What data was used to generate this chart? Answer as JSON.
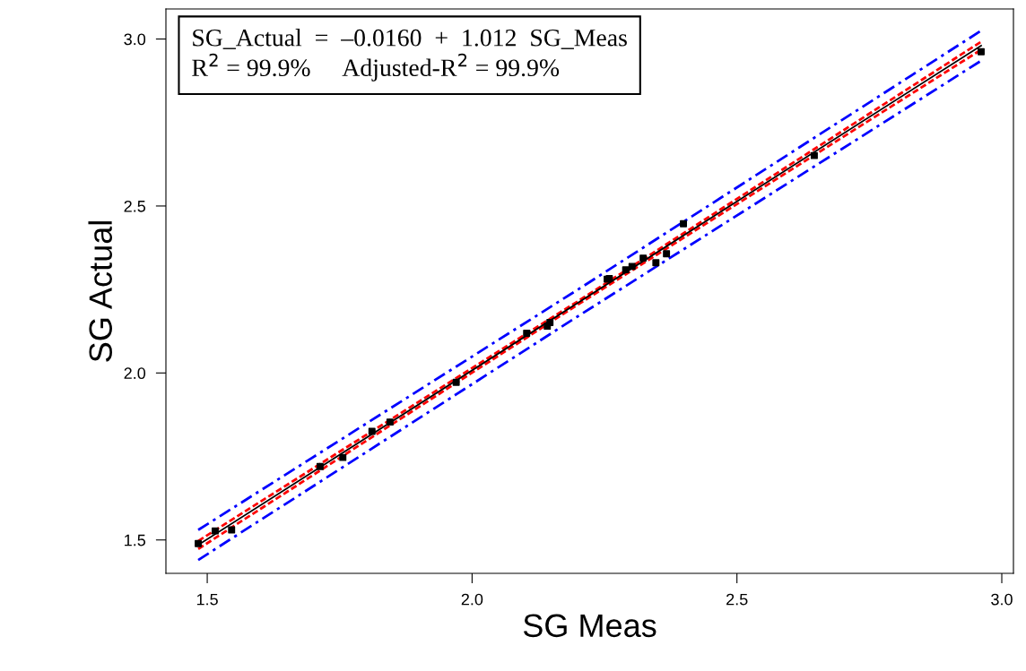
{
  "chart_data": {
    "type": "scatter",
    "xlabel": "SG Meas",
    "ylabel": "SG Actual",
    "xlim": [
      1.422,
      3.022
    ],
    "ylim": [
      1.4,
      3.09
    ],
    "xticks": [
      {
        "value": 1.5,
        "label": "1.5"
      },
      {
        "value": 2.0,
        "label": "2.0"
      },
      {
        "value": 2.5,
        "label": "2.5"
      },
      {
        "value": 3.0,
        "label": "3.0"
      }
    ],
    "yticks": [
      {
        "value": 1.5,
        "label": "1.5"
      },
      {
        "value": 2.0,
        "label": "2.0"
      },
      {
        "value": 2.5,
        "label": "2.5"
      },
      {
        "value": 3.0,
        "label": "3.0"
      }
    ],
    "grid": false,
    "legend": false,
    "annotations": [
      "SG_Actual  =  –0.0160  +  1.012  SG_Meas\nR$^{2}$ = 99.9%     Adjusted-R$^{2}$ = 99.9%"
    ],
    "series": [
      {
        "color": "#000000",
        "marker": "square",
        "x": [
          1.483,
          1.515,
          1.546,
          1.713,
          1.756,
          1.811,
          1.845,
          1.97,
          2.103,
          2.142,
          2.147,
          2.255,
          2.259,
          2.29,
          2.302,
          2.323,
          2.347,
          2.367,
          2.399,
          2.646,
          2.961
        ],
        "values": [
          1.489,
          1.527,
          1.53,
          1.72,
          1.747,
          1.825,
          1.853,
          1.972,
          2.119,
          2.14,
          2.151,
          2.281,
          2.283,
          2.309,
          2.319,
          2.344,
          2.33,
          2.357,
          2.447,
          2.651,
          2.962
        ]
      },
      {
        "type": "line",
        "color": "#0000ff",
        "line_style": "dashed",
        "x": [
          1.483,
          2.2,
          2.961
        ],
        "values": [
          1.53,
          2.25,
          3.025
        ]
      },
      {
        "type": "line",
        "color": "#0000ff",
        "line_style": "dashed",
        "x": [
          1.483,
          2.2,
          2.961
        ],
        "values": [
          1.44,
          2.17,
          2.935
        ]
      },
      {
        "type": "line",
        "color": "#ff0000",
        "line_style": "dotted",
        "x": [
          1.483,
          2.2,
          2.961
        ],
        "values": [
          1.497,
          2.215,
          2.992
        ]
      },
      {
        "type": "line",
        "color": "#ff0000",
        "line_style": "dotted",
        "x": [
          1.483,
          2.2,
          2.961
        ],
        "values": [
          1.473,
          2.205,
          2.968
        ]
      },
      {
        "type": "line",
        "color": "#000000",
        "line_style": "solid",
        "x": [
          1.483,
          2.961
        ],
        "values": [
          1.485,
          2.98
        ]
      }
    ]
  }
}
